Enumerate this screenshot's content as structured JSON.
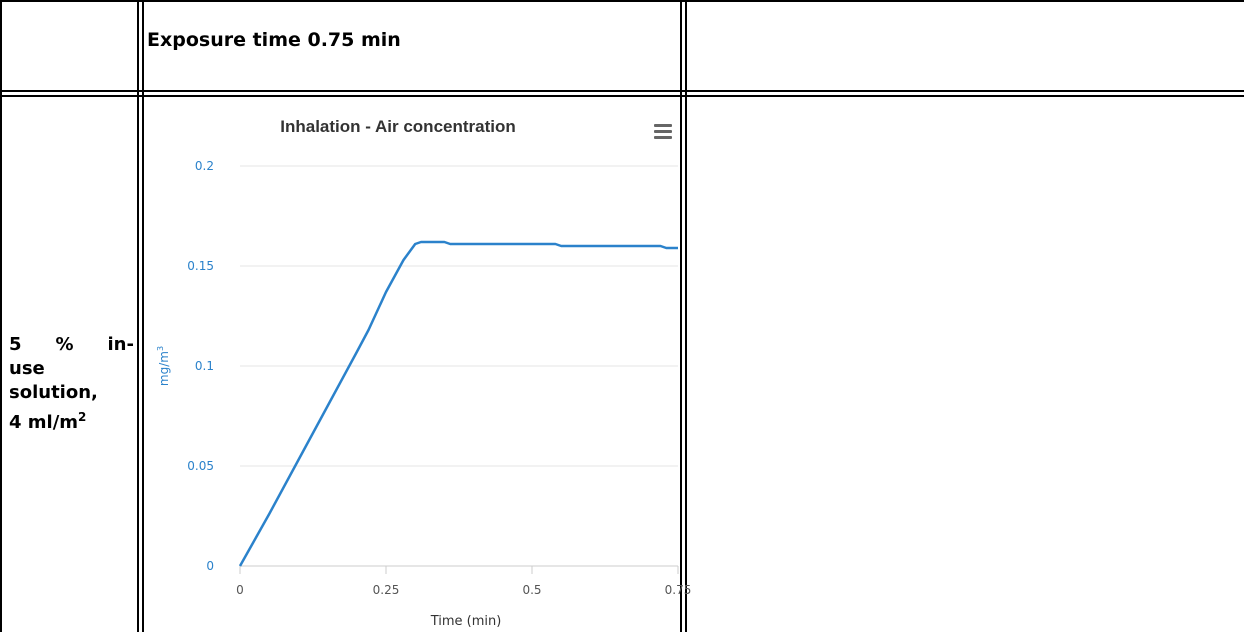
{
  "table": {
    "header_text": "Exposure time  0.75 min",
    "row_label": {
      "line1_words": [
        "5",
        "%",
        "in-"
      ],
      "line2": "use",
      "line3": "solution,",
      "line4_prefix": "4 ml/m",
      "line4_sup": "2"
    }
  },
  "chart_menu_icon": "hamburger-menu-icon",
  "colors": {
    "series": "#2b82cb",
    "axis_text": "#2b82cb",
    "grid": "#e6e6e6",
    "tick_text": "#555555"
  },
  "chart_data": {
    "type": "line",
    "title": "Inhalation - Air concentration",
    "xlabel": "Time (min)",
    "ylabel_prefix": "mg/m",
    "ylabel_sup": "3",
    "xlim": [
      0,
      0.75
    ],
    "ylim": [
      0,
      0.2
    ],
    "x_ticks": [
      "0",
      "0.25",
      "0.5",
      "0.75"
    ],
    "y_ticks": [
      "0",
      "0.05",
      "0.1",
      "0.15",
      "0.2"
    ],
    "grid": true,
    "series": [
      {
        "x": [
          0,
          0.05,
          0.1,
          0.15,
          0.2,
          0.22,
          0.25,
          0.28,
          0.3,
          0.31,
          0.35,
          0.36,
          0.45,
          0.54,
          0.55,
          0.65,
          0.72,
          0.73,
          0.75
        ],
        "y": [
          0,
          0.026,
          0.053,
          0.08,
          0.107,
          0.118,
          0.137,
          0.153,
          0.161,
          0.162,
          0.162,
          0.161,
          0.161,
          0.161,
          0.16,
          0.16,
          0.16,
          0.159,
          0.159
        ]
      }
    ]
  }
}
